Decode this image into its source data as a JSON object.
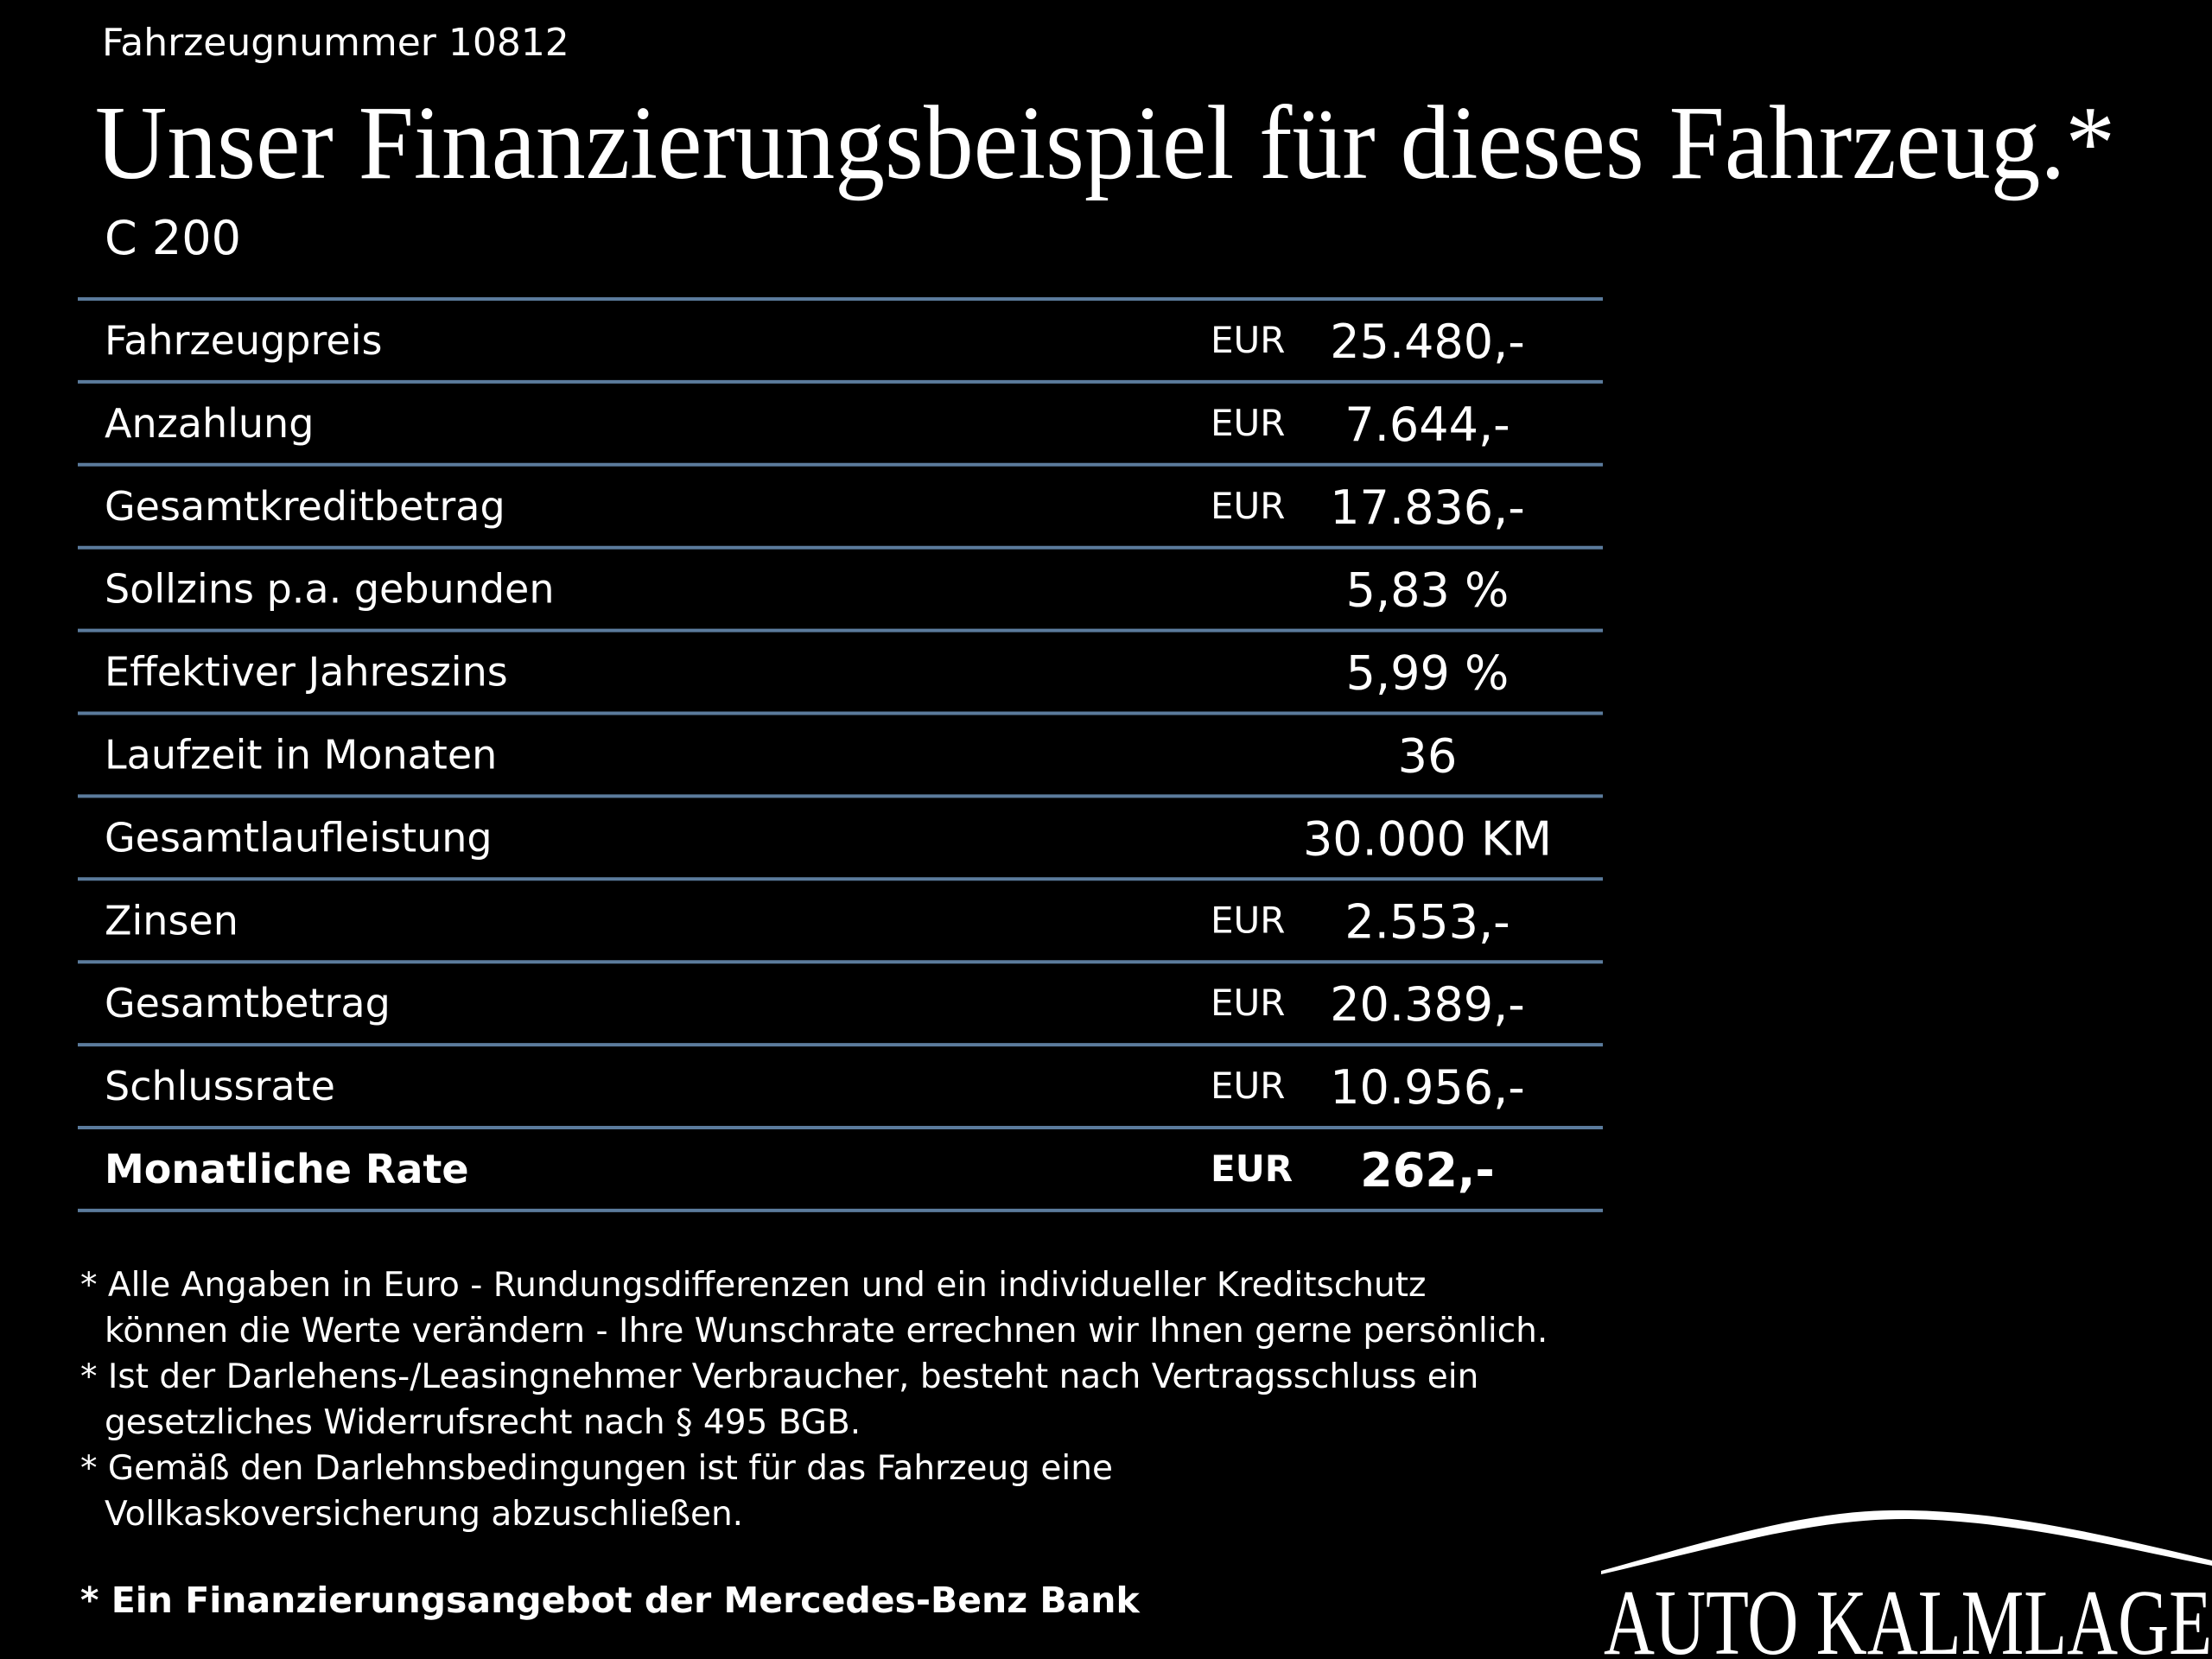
{
  "header": {
    "vehicle_number": "Fahrzeugnummer 10812",
    "title": "Unser Finanzierungsbeispiel für dieses Fahrzeug.*",
    "model": "C 200"
  },
  "table": {
    "rows": [
      {
        "label": "Fahrzeugpreis",
        "currency": "EUR",
        "value": "25.480,-"
      },
      {
        "label": "Anzahlung",
        "currency": "EUR",
        "value": "7.644,-"
      },
      {
        "label": "Gesamtkreditbetrag",
        "currency": "EUR",
        "value": "17.836,-"
      },
      {
        "label": "Sollzins p.a. gebunden",
        "value": "5,83 %"
      },
      {
        "label": "Effektiver Jahreszins",
        "value": "5,99 %"
      },
      {
        "label": "Laufzeit in Monaten",
        "value": "36"
      },
      {
        "label": "Gesamtlaufleistung",
        "value": "30.000 KM"
      },
      {
        "label": "Zinsen",
        "currency": "EUR",
        "value": "2.553,-"
      },
      {
        "label": "Gesamtbetrag",
        "currency": "EUR",
        "value": "20.389,-"
      },
      {
        "label": "Schlussrate",
        "currency": "EUR",
        "value": "10.956,-"
      },
      {
        "label": "Monatliche Rate",
        "currency": "EUR",
        "value": "262,-",
        "bold": true
      }
    ]
  },
  "footnotes": [
    {
      "lines": [
        "* Alle Angaben in Euro - Rundungsdifferenzen und ein individueller Kreditschutz",
        "können die Werte verändern - Ihre Wunschrate errechnen wir Ihnen gerne persönlich."
      ]
    },
    {
      "lines": [
        "* Ist der Darlehens-/Leasingnehmer Verbraucher, besteht nach Vertragsschluss ein",
        "gesetzliches Widerrufsrecht nach § 495 BGB."
      ]
    },
    {
      "lines": [
        "* Gemäß den Darlehnsbedingungen ist für das Fahrzeug eine",
        "Vollkaskoversicherung abzuschließen."
      ]
    }
  ],
  "bank_note": "* Ein Finanzierungsangebot der Mercedes-Benz Bank",
  "logo": "AUTO KALMLAGE"
}
